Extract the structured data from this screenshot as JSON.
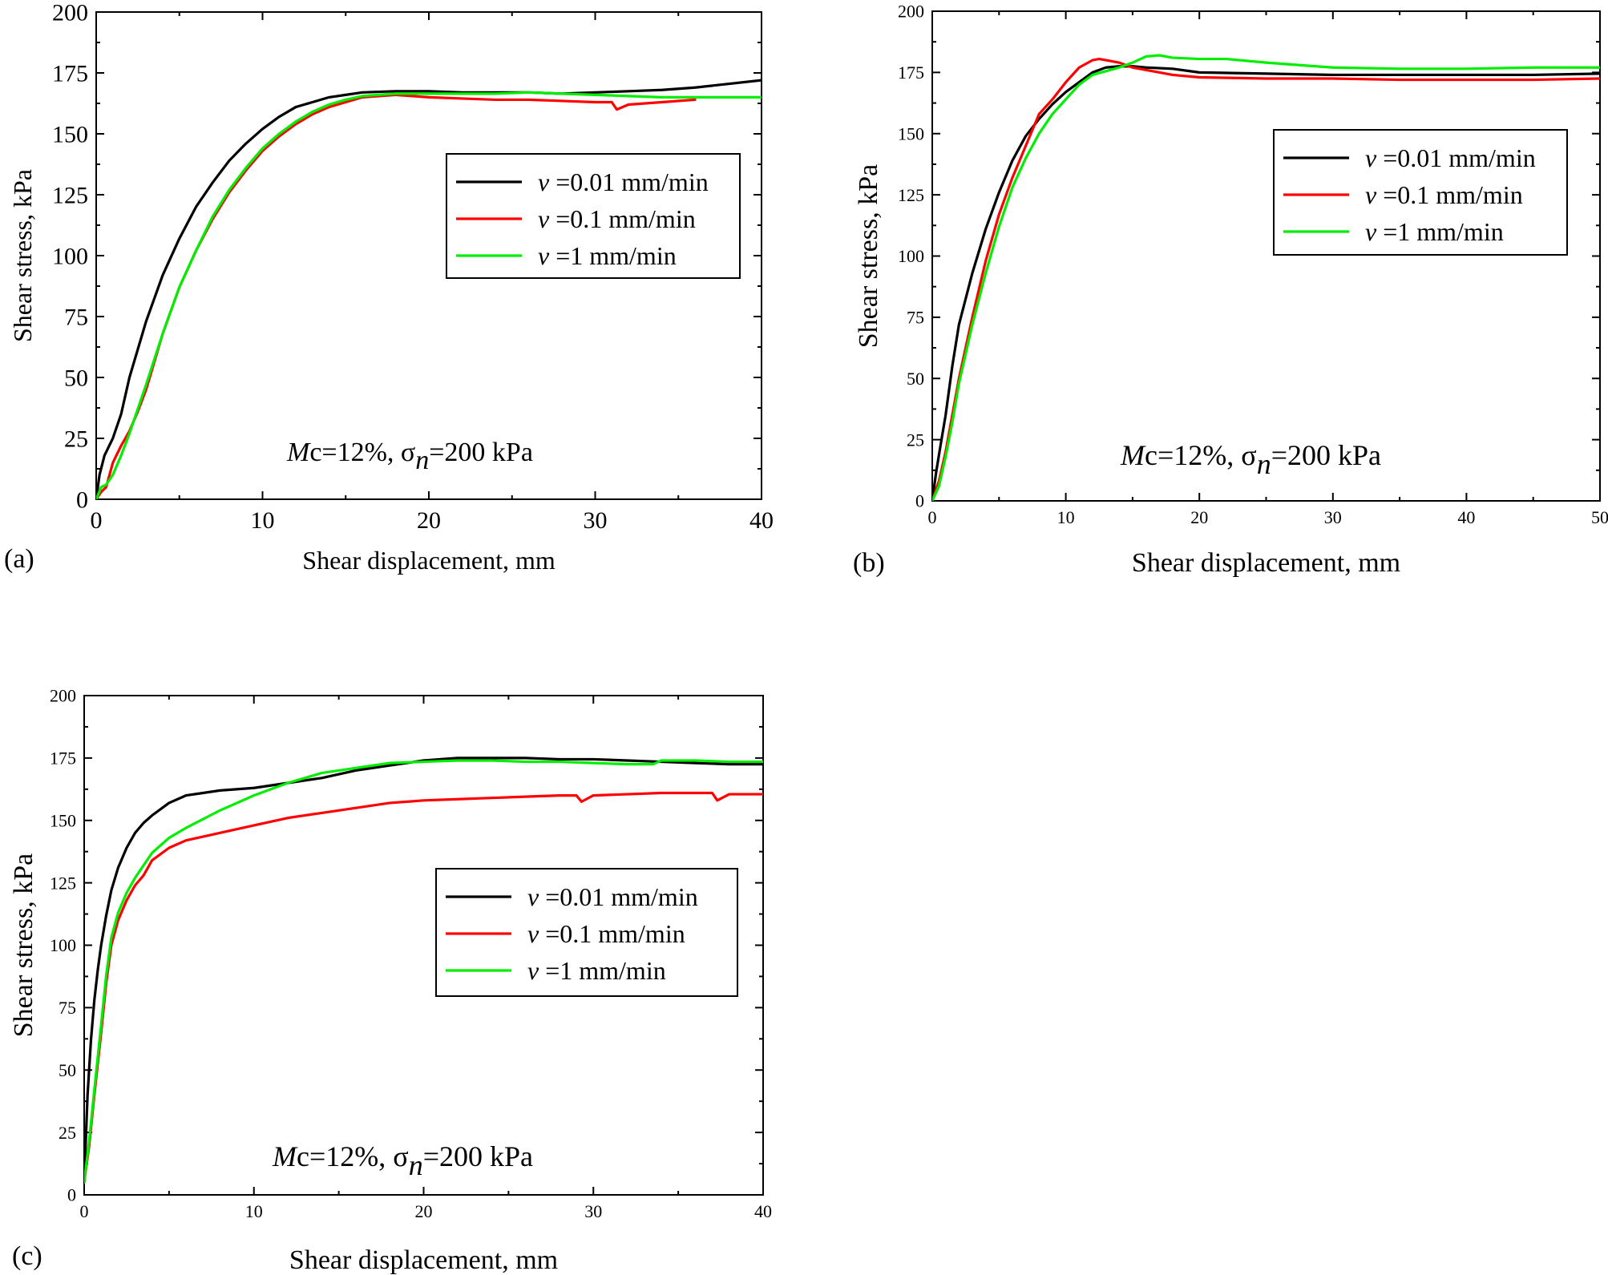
{
  "colors": {
    "v001": "#000000",
    "v01": "#ff0000",
    "v1": "#00ee00"
  },
  "chart_data": [
    {
      "type": "line",
      "panel": "(a)",
      "xlabel": "Shear displacement, mm",
      "ylabel": "Shear stress, kPa",
      "xlim": [
        0,
        40
      ],
      "ylim": [
        0,
        200
      ],
      "xticks": [
        0,
        10,
        20,
        30,
        40
      ],
      "yticks": [
        0,
        25,
        50,
        75,
        100,
        125,
        150,
        175,
        200
      ],
      "annotation": {
        "prefix": "M",
        "mid": "c=12%, σ",
        "sub": "n",
        "suffix": "=200 kPa"
      },
      "series": [
        {
          "name": "v =0.01 mm/min",
          "v": "v",
          "rest": " =0.01 mm/min",
          "color": "#000000",
          "x": [
            0,
            0.2,
            0.5,
            1,
            1.5,
            2,
            3,
            4,
            5,
            6,
            7,
            8,
            9,
            10,
            11,
            12,
            13,
            14,
            15,
            16,
            18,
            20,
            22,
            24,
            26,
            28,
            30,
            32,
            34,
            36,
            38,
            40
          ],
          "y": [
            0,
            10,
            18,
            25,
            35,
            50,
            73,
            92,
            107,
            120,
            130,
            139,
            146,
            152,
            157,
            161,
            163,
            165,
            166,
            167,
            167.5,
            167.5,
            167,
            167,
            167,
            166.5,
            167,
            167.5,
            168,
            169,
            170.5,
            172
          ]
        },
        {
          "name": "v =0.1 mm/min",
          "v": "v",
          "rest": " =0.1 mm/min",
          "color": "#ff0000",
          "x": [
            0,
            0.3,
            0.6,
            1,
            1.5,
            2,
            2.5,
            3,
            4,
            5,
            6,
            7,
            8,
            9,
            10,
            11,
            12,
            13,
            14,
            15,
            16,
            18,
            20,
            22,
            24,
            26,
            28,
            30,
            31,
            31.3,
            32,
            34,
            36
          ],
          "y": [
            0,
            3,
            5,
            15,
            22,
            28,
            36,
            45,
            68,
            87,
            102,
            115,
            126,
            135,
            143,
            149,
            154,
            158,
            161,
            163,
            165,
            166,
            165,
            164.5,
            164,
            164,
            163.5,
            163,
            163,
            160,
            162,
            163,
            164
          ]
        },
        {
          "name": "v =1 mm/min",
          "v": "v",
          "rest": " =1 mm/min",
          "color": "#00ee00",
          "x": [
            0,
            0.3,
            0.6,
            1,
            1.5,
            2,
            3,
            4,
            5,
            6,
            7,
            8,
            9,
            10,
            11,
            12,
            13,
            14,
            15,
            16,
            18,
            20,
            22,
            24,
            26,
            28,
            30,
            32,
            34,
            36,
            38,
            40
          ],
          "y": [
            0,
            5,
            6,
            10,
            18,
            27,
            47,
            68,
            87,
            102,
            116,
            127,
            136,
            144,
            150,
            155,
            159,
            162,
            164,
            165.5,
            166.5,
            166.5,
            166.5,
            166.5,
            167,
            166.5,
            166,
            165.5,
            165,
            165,
            165,
            165
          ]
        }
      ]
    },
    {
      "type": "line",
      "panel": "(b)",
      "xlabel": "Shear displacement, mm",
      "ylabel": "Shear stress, kPa",
      "xlim": [
        0,
        50
      ],
      "ylim": [
        0,
        200
      ],
      "xticks": [
        0,
        10,
        20,
        30,
        40,
        50
      ],
      "yticks": [
        0,
        25,
        50,
        75,
        100,
        125,
        150,
        175,
        200
      ],
      "annotation": {
        "prefix": "M",
        "mid": "c=12%, σ",
        "sub": "n",
        "suffix": "=200 kPa"
      },
      "series": [
        {
          "name": "v =0.01 mm/min",
          "v": "v",
          "rest": " =0.01 mm/min",
          "color": "#000000",
          "x": [
            0,
            0.3,
            0.6,
            1,
            1.5,
            2,
            3,
            4,
            5,
            6,
            7,
            8,
            9,
            10,
            11,
            12,
            13,
            14,
            15,
            16,
            18,
            20,
            25,
            30,
            35,
            40,
            45,
            50
          ],
          "y": [
            0,
            12,
            22,
            35,
            55,
            72,
            93,
            111,
            126,
            139,
            149,
            156,
            162,
            167,
            171,
            175,
            177,
            177.5,
            177.5,
            177,
            176.5,
            175,
            174.5,
            174,
            174,
            174,
            174,
            174.5
          ]
        },
        {
          "name": "v =0.1 mm/min",
          "v": "v",
          "rest": " =0.1 mm/min",
          "color": "#ff0000",
          "x": [
            0,
            0.5,
            1,
            1.5,
            2,
            3,
            4,
            5,
            6,
            7,
            8,
            9,
            10,
            11,
            12,
            12.5,
            13,
            14,
            15,
            16,
            18,
            20,
            25,
            30,
            35,
            40,
            45,
            50
          ],
          "y": [
            0,
            8,
            20,
            35,
            50,
            75,
            98,
            117,
            132,
            145,
            158,
            164,
            171,
            177,
            180,
            180.5,
            180,
            179,
            177,
            176,
            174,
            173,
            172.5,
            172.5,
            172,
            172,
            172,
            172.5
          ]
        },
        {
          "name": "v =1 mm/min",
          "v": "v",
          "rest": " =1 mm/min",
          "color": "#00ee00",
          "x": [
            0,
            0.5,
            1,
            1.5,
            2,
            3,
            4,
            5,
            6,
            7,
            8,
            9,
            10,
            11,
            12,
            13,
            14,
            15,
            16,
            17,
            18,
            20,
            22,
            25,
            30,
            35,
            40,
            45,
            50
          ],
          "y": [
            0,
            6,
            18,
            32,
            48,
            72,
            93,
            112,
            128,
            140,
            150,
            158,
            164,
            170,
            174,
            175.5,
            177,
            179,
            181.5,
            182,
            181,
            180.5,
            180.5,
            179,
            177,
            176.5,
            176.5,
            177,
            177
          ]
        }
      ]
    },
    {
      "type": "line",
      "panel": "(c)",
      "xlabel": "Shear displacement, mm",
      "ylabel": "Shear stress, kPa",
      "xlim": [
        0,
        40
      ],
      "ylim": [
        0,
        200
      ],
      "xticks": [
        0,
        10,
        20,
        30,
        40
      ],
      "yticks": [
        0,
        25,
        50,
        75,
        100,
        125,
        150,
        175,
        200
      ],
      "annotation": {
        "prefix": "M",
        "mid": "c=12%, σ",
        "sub": "n",
        "suffix": "=200 kPa"
      },
      "series": [
        {
          "name": "v =0.01 mm/min",
          "v": "v",
          "rest": " =0.01 mm/min",
          "color": "#000000",
          "x": [
            0,
            0.2,
            0.4,
            0.6,
            0.8,
            1,
            1.3,
            1.6,
            2,
            2.5,
            3,
            3.5,
            4,
            5,
            6,
            7,
            8,
            10,
            12,
            14,
            16,
            18,
            20,
            22,
            24,
            26,
            28,
            30,
            32,
            34,
            36,
            38,
            40
          ],
          "y": [
            5,
            40,
            62,
            78,
            90,
            100,
            112,
            122,
            131,
            139,
            145,
            149,
            152,
            157,
            160,
            161,
            162,
            163,
            165,
            167,
            170,
            172,
            174,
            175,
            175,
            175,
            174.5,
            174.5,
            174,
            173.5,
            173,
            172.5,
            172.5
          ]
        },
        {
          "name": "v =0.1 mm/min",
          "v": "v",
          "rest": " =0.1 mm/min",
          "color": "#ff0000",
          "x": [
            0,
            0.3,
            0.6,
            1,
            1.3,
            1.6,
            2,
            2.5,
            3,
            3.5,
            4,
            5,
            6,
            8,
            10,
            12,
            14,
            16,
            18,
            20,
            22,
            24,
            26,
            28,
            29,
            29.3,
            30,
            32,
            34,
            36,
            37,
            37.3,
            38,
            40
          ],
          "y": [
            5,
            20,
            40,
            65,
            85,
            100,
            110,
            118,
            124,
            128,
            134,
            139,
            142,
            145,
            148,
            151,
            153,
            155,
            157,
            158,
            158.5,
            159,
            159.5,
            160,
            160,
            157.5,
            160,
            160.5,
            161,
            161,
            161,
            158,
            160.5,
            160.5
          ]
        },
        {
          "name": "v =1 mm/min",
          "v": "v",
          "rest": " =1 mm/min",
          "color": "#00ee00",
          "x": [
            0,
            0.3,
            0.6,
            1,
            1.3,
            1.6,
            2,
            2.5,
            3,
            3.5,
            4,
            5,
            6,
            8,
            10,
            12,
            14,
            16,
            18,
            20,
            22,
            24,
            26,
            28,
            30,
            32,
            33.5,
            34,
            36,
            38,
            40
          ],
          "y": [
            5,
            22,
            42,
            68,
            88,
            103,
            113,
            121,
            127,
            132,
            137,
            143,
            147,
            154,
            160,
            165,
            169,
            171,
            173,
            173.5,
            174,
            174,
            173.5,
            173.5,
            173,
            172.5,
            172.5,
            174,
            174,
            173.5,
            173.5
          ]
        }
      ]
    }
  ]
}
